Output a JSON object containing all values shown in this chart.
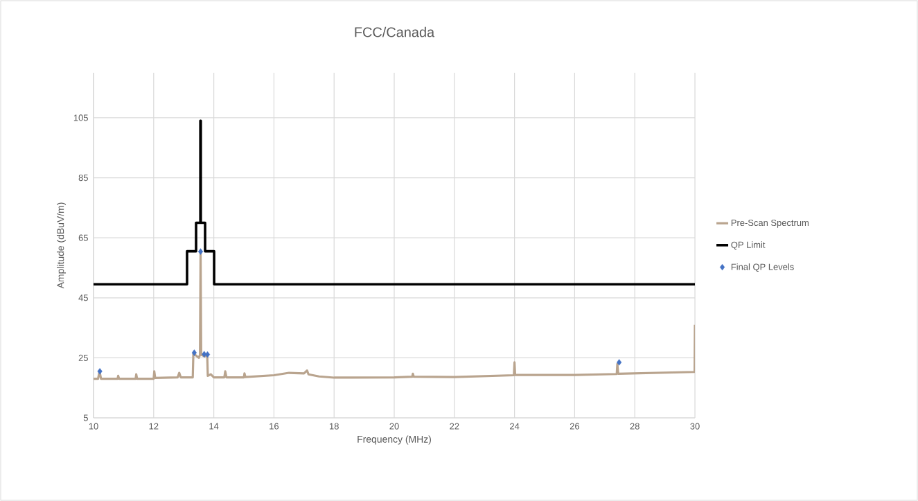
{
  "chart_data": {
    "type": "line",
    "title": "FCC/Canada",
    "xlabel": "Frequency (MHz)",
    "ylabel": "Amplitude (dBuV/m)",
    "xlim": [
      10,
      30
    ],
    "ylim": [
      5,
      120
    ],
    "xticks": [
      10,
      12,
      14,
      16,
      18,
      20,
      22,
      24,
      26,
      28,
      30
    ],
    "yticks": [
      5,
      25,
      45,
      65,
      85,
      105
    ],
    "grid": true,
    "legend": "right",
    "series": [
      {
        "name": "Pre-Scan Spectrum",
        "color": "#b9a48e",
        "x": [
          10.0,
          10.15,
          10.2,
          10.25,
          10.8,
          10.82,
          10.85,
          11.4,
          11.42,
          11.45,
          12.0,
          12.02,
          12.05,
          12.8,
          12.85,
          12.9,
          13.3,
          13.32,
          13.5,
          13.54,
          13.56,
          13.58,
          13.7,
          13.78,
          13.8,
          13.9,
          14.0,
          14.35,
          14.38,
          14.42,
          15.0,
          15.02,
          15.05,
          16.0,
          16.5,
          17.0,
          17.1,
          17.15,
          17.5,
          18.0,
          20.0,
          20.6,
          20.62,
          20.65,
          22.0,
          23.98,
          24.0,
          24.02,
          26.0,
          27.4,
          27.42,
          27.45,
          29.99,
          30.0
        ],
        "values": [
          18,
          18,
          20.5,
          18,
          18,
          19,
          18,
          18,
          19.5,
          18,
          18,
          20.5,
          18.3,
          18.5,
          20,
          18.5,
          18.5,
          26.5,
          25,
          26,
          60.5,
          26,
          25.5,
          26,
          19,
          19.5,
          18.5,
          18.5,
          20.5,
          18.5,
          18.5,
          19.8,
          18.6,
          19.2,
          20,
          19.8,
          20.8,
          19.5,
          18.8,
          18.4,
          18.5,
          18.7,
          19.7,
          18.7,
          18.6,
          19.2,
          23.5,
          19.3,
          19.3,
          19.6,
          23,
          19.7,
          20.3,
          36
        ]
      },
      {
        "name": "QP Limit",
        "color": "#000000",
        "x": [
          10,
          13.11,
          13.11,
          13.41,
          13.41,
          13.553,
          13.553,
          13.567,
          13.567,
          13.71,
          13.71,
          14.01,
          14.01,
          30
        ],
        "values": [
          49.5,
          49.5,
          60.5,
          60.5,
          70,
          70,
          104,
          104,
          70,
          70,
          60.5,
          60.5,
          49.5,
          49.5
        ]
      },
      {
        "name": "Final QP Levels",
        "type": "scatter",
        "marker": "diamond",
        "color": "#4472c4",
        "x": [
          10.21,
          13.35,
          13.56,
          13.68,
          13.79,
          27.48
        ],
        "values": [
          20.5,
          26.7,
          60.4,
          26.2,
          26.1,
          23.5
        ]
      }
    ]
  }
}
